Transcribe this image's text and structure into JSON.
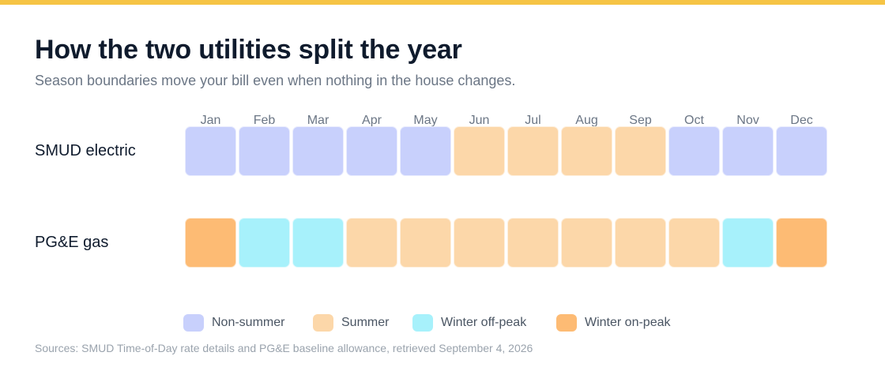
{
  "title": "How the two utilities split the year",
  "subtitle": "Season boundaries move your bill even when nothing in the house changes.",
  "source": "Sources: SMUD Time-of-Day rate details and PG&E baseline allowance, retrieved September 4, 2026",
  "colors": {
    "accent_bar": "#f6c445",
    "Non-summer": "#c8d0fc",
    "Summer": "#fcd7a9",
    "Winter off-peak": "#a7f1fb",
    "Winter on-peak": "#fdbb74"
  },
  "chart_data": {
    "type": "heatmap",
    "title": "How the two utilities split the year",
    "subtitle": "Season boundaries move your bill even when nothing in the house changes.",
    "months": [
      "Jan",
      "Feb",
      "Mar",
      "Apr",
      "May",
      "Jun",
      "Jul",
      "Aug",
      "Sep",
      "Oct",
      "Nov",
      "Dec"
    ],
    "rows": [
      {
        "name": "SMUD electric",
        "seasons": [
          "Non-summer",
          "Non-summer",
          "Non-summer",
          "Non-summer",
          "Non-summer",
          "Summer",
          "Summer",
          "Summer",
          "Summer",
          "Non-summer",
          "Non-summer",
          "Non-summer"
        ]
      },
      {
        "name": "PG&E gas",
        "seasons": [
          "Winter on-peak",
          "Winter off-peak",
          "Winter off-peak",
          "Summer",
          "Summer",
          "Summer",
          "Summer",
          "Summer",
          "Summer",
          "Summer",
          "Winter off-peak",
          "Winter on-peak"
        ]
      }
    ],
    "legend": [
      "Non-summer",
      "Summer",
      "Winter off-peak",
      "Winter on-peak"
    ],
    "legend_position": "bottom"
  }
}
